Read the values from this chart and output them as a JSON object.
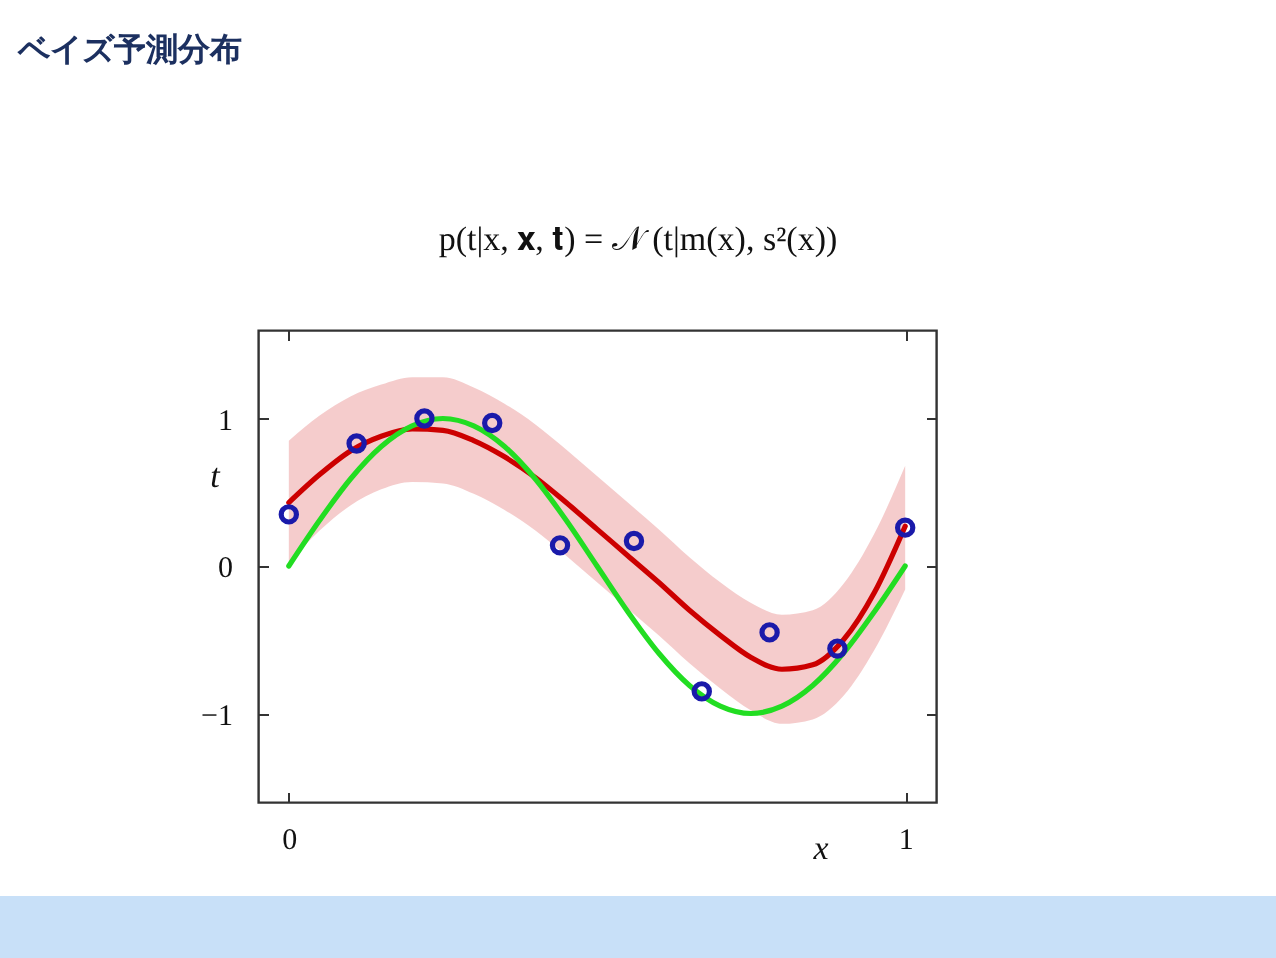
{
  "chart_data": {
    "type": "line",
    "title": "ベイズ予測分布",
    "annotations": [
      "p(t|x, 𝐱, 𝐭) = 𝒩 (t|m(x), s²(x))"
    ],
    "xlabel": "x",
    "ylabel": "t",
    "xlim": [
      -0.05,
      1.05
    ],
    "ylim": [
      -1.6,
      1.6
    ],
    "xticks": [
      0,
      1
    ],
    "yticks": [
      -1,
      0,
      1
    ],
    "grid": false,
    "legend": false,
    "series": [
      {
        "type": "line",
        "color": "#cc0000",
        "x": [
          0,
          0.05,
          0.1,
          0.15,
          0.2,
          0.25,
          0.3,
          0.35,
          0.4,
          0.45,
          0.5,
          0.55,
          0.6,
          0.65,
          0.7,
          0.75,
          0.8,
          0.85,
          0.9,
          0.95,
          1
        ],
        "values": [
          0.43,
          0.62,
          0.78,
          0.88,
          0.93,
          0.92,
          0.85,
          0.74,
          0.6,
          0.43,
          0.25,
          0.07,
          -0.11,
          -0.3,
          -0.47,
          -0.62,
          -0.7,
          -0.67,
          -0.5,
          -0.18,
          0.27
        ],
        "lower": [
          0.02,
          0.24,
          0.41,
          0.52,
          0.57,
          0.56,
          0.49,
          0.38,
          0.24,
          0.07,
          -0.11,
          -0.29,
          -0.47,
          -0.66,
          -0.83,
          -0.98,
          -1.07,
          -1.04,
          -0.88,
          -0.57,
          -0.16
        ],
        "upper": [
          0.85,
          1.02,
          1.15,
          1.23,
          1.28,
          1.28,
          1.21,
          1.1,
          0.96,
          0.79,
          0.61,
          0.43,
          0.25,
          0.06,
          -0.11,
          -0.25,
          -0.33,
          -0.3,
          -0.12,
          0.22,
          0.68
        ]
      },
      {
        "type": "line",
        "color": "#22dd22",
        "x": [
          0,
          0.05,
          0.1,
          0.15,
          0.2,
          0.25,
          0.3,
          0.35,
          0.4,
          0.45,
          0.5,
          0.55,
          0.6,
          0.65,
          0.7,
          0.75,
          0.8,
          0.85,
          0.9,
          0.95,
          1
        ],
        "values": [
          0,
          0.31,
          0.59,
          0.81,
          0.95,
          1.0,
          0.95,
          0.81,
          0.59,
          0.31,
          0,
          -0.31,
          -0.59,
          -0.81,
          -0.95,
          -1.0,
          -0.95,
          -0.81,
          -0.59,
          -0.31,
          0
        ]
      },
      {
        "type": "scatter",
        "color": "#1a1aaa",
        "marker": "circle",
        "x": [
          0,
          0.11,
          0.22,
          0.33,
          0.44,
          0.56,
          0.67,
          0.78,
          0.89,
          1
        ],
        "values": [
          0.35,
          0.83,
          1.0,
          0.97,
          0.14,
          0.17,
          -0.85,
          -0.45,
          -0.56,
          0.26
        ]
      }
    ]
  }
}
